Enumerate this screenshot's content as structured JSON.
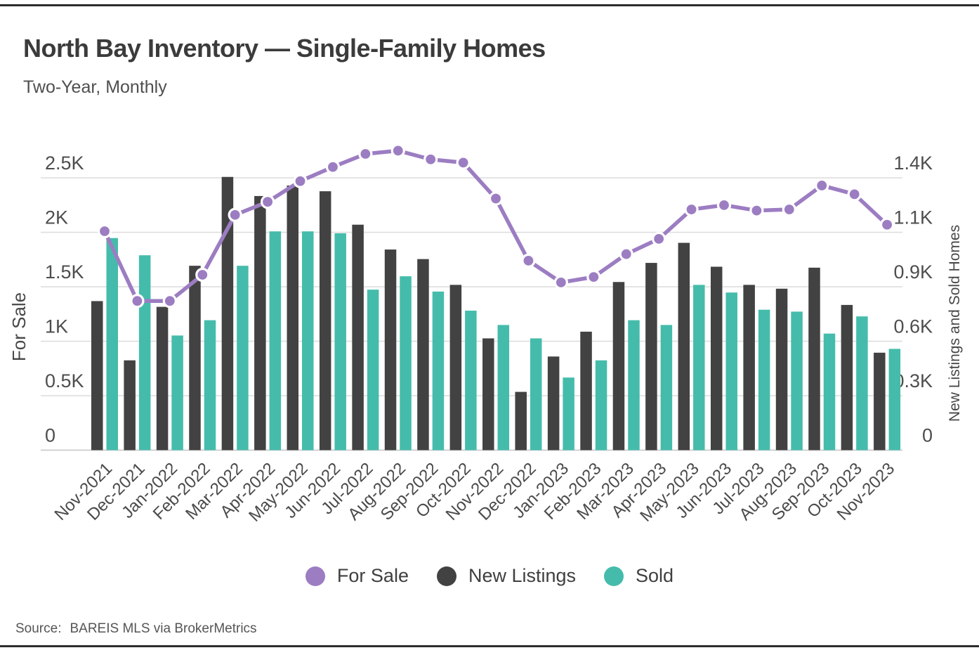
{
  "header": {
    "title": "North Bay Inventory — Single-Family Homes",
    "subtitle": "Two-Year, Monthly"
  },
  "chart_data": {
    "type": "bar",
    "subtype": "grouped bars with overlaid line (dual axis)",
    "title": "North Bay Inventory — Single-Family Homes",
    "subtitle": "Two-Year, Monthly",
    "categories": [
      "Nov-2021",
      "Dec-2021",
      "Jan-2022",
      "Feb-2022",
      "Mar-2022",
      "Apr-2022",
      "May-2022",
      "Jun-2022",
      "Jul-2022",
      "Aug-2022",
      "Sep-2022",
      "Oct-2022",
      "Nov-2022",
      "Dec-2022",
      "Jan-2023",
      "Feb-2023",
      "Mar-2023",
      "Apr-2023",
      "May-2023",
      "Jun-2023",
      "Jul-2023",
      "Aug-2023",
      "Sep-2023",
      "Oct-2023",
      "Nov-2023"
    ],
    "series": [
      {
        "name": "For Sale",
        "type": "line",
        "axis": "left",
        "color": "#9c7dc2",
        "values": [
          2010,
          1370,
          1370,
          1610,
          2160,
          2280,
          2470,
          2600,
          2720,
          2750,
          2670,
          2640,
          2310,
          1740,
          1540,
          1590,
          1800,
          1940,
          2210,
          2250,
          2200,
          2210,
          2430,
          2350,
          2070
        ]
      },
      {
        "name": "New Listings",
        "type": "bar",
        "axis": "right",
        "color": "#424242",
        "values": [
          780,
          470,
          750,
          965,
          1430,
          1330,
          1385,
          1355,
          1180,
          1050,
          1000,
          865,
          585,
          305,
          490,
          620,
          880,
          980,
          1085,
          960,
          865,
          845,
          955,
          760,
          510
        ]
      },
      {
        "name": "Sold",
        "type": "bar",
        "axis": "right",
        "color": "#45bcab",
        "values": [
          1110,
          1020,
          600,
          680,
          965,
          1145,
          1145,
          1135,
          840,
          910,
          830,
          730,
          655,
          585,
          380,
          470,
          680,
          655,
          865,
          825,
          735,
          725,
          610,
          700,
          530
        ]
      }
    ],
    "axes": {
      "left": {
        "label": "For Sale",
        "ticks": [
          "0",
          "0.5K",
          "1K",
          "1.5K",
          "2K",
          "2.5K"
        ],
        "tick_values": [
          0,
          500,
          1000,
          1500,
          2000,
          2500
        ],
        "range": [
          0,
          2500
        ]
      },
      "right": {
        "label": "New Listings and Sold Homes",
        "ticks": [
          "0",
          "0.3K",
          "0.6K",
          "0.9K",
          "1.1K",
          "1.4K"
        ],
        "tick_values": [
          0,
          285,
          570,
          855,
          1140,
          1425
        ],
        "range": [
          0,
          1425
        ]
      }
    },
    "legend": {
      "position": "bottom",
      "entries": [
        "For Sale",
        "New Listings",
        "Sold"
      ]
    },
    "grid": "horizontal gridlines on",
    "colors": {
      "grid": "#dedede",
      "baseline": "#c6c6c6",
      "tick_text": "#4e4e4e",
      "marker_stroke": "#ffffff"
    }
  },
  "footer": {
    "source_label": "Source:",
    "source_text": "BAREIS MLS via BrokerMetrics"
  }
}
